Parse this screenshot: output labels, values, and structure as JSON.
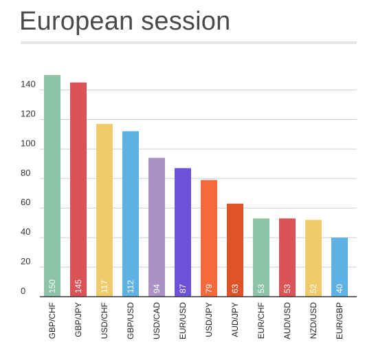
{
  "chart_data": {
    "type": "bar",
    "title": "European session",
    "xlabel": "",
    "ylabel": "",
    "categories": [
      "GBP/CHF",
      "GBP/JPY",
      "USD/CHF",
      "GBP/USD",
      "USD/CAD",
      "EUR/USD",
      "USD/JPY",
      "AUD/JPY",
      "EUR/CHF",
      "AUD/USD",
      "NZD/USD",
      "EUR/GBP"
    ],
    "values": [
      150,
      145,
      117,
      112,
      94,
      87,
      79,
      63,
      53,
      53,
      52,
      40
    ],
    "data_labels": [
      "150",
      "145",
      "117",
      "112",
      "94",
      "87",
      "79",
      "63",
      "53",
      "53",
      "52",
      "40"
    ],
    "colors": [
      "#8dc3a7",
      "#dc5356",
      "#f0cb6c",
      "#5eb3e4",
      "#ab91c5",
      "#6b52d9",
      "#f56a3c",
      "#e0532a",
      "#8dc3a7",
      "#dc5356",
      "#f0cb6c",
      "#5eb3e4"
    ],
    "yticks": [
      0,
      20,
      40,
      60,
      80,
      100,
      120,
      140
    ],
    "ytick_labels": [
      "0",
      "20",
      "40",
      "60",
      "80",
      "100",
      "120",
      "140"
    ],
    "ylim": [
      0,
      150
    ],
    "grid": true,
    "legend": "none"
  }
}
